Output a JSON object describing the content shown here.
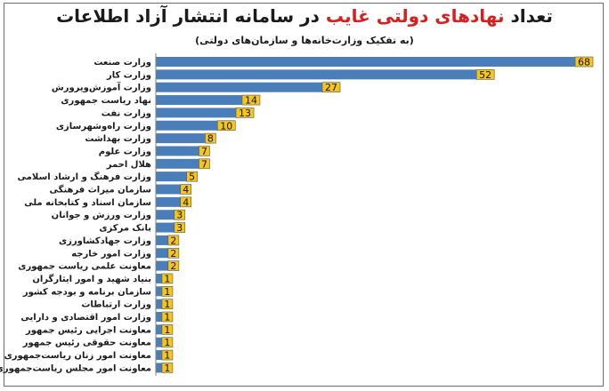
{
  "chart_data": {
    "type": "bar",
    "orientation": "horizontal",
    "title_parts": [
      "تعداد ",
      "نهادهای دولتی غایب",
      " در سامانه انتشار آزاد اطلاعات"
    ],
    "subtitle": "(به تفکیک وزارت‌خانه‌ها و سازمان‌های دولتی)",
    "categories": [
      "وزارت صنعت",
      "وزارت کار",
      "وزارت آموزش‌وپرورش",
      "نهاد ریاست جمهوری",
      "وزارت نفت",
      "وزارت راه‌وشهرسازی",
      "وزارت بهداشت",
      "وزارت علوم",
      "هلال احمر",
      "وزارت فرهنگ و ارشاد اسلامی",
      "سازمان میراث فرهنگی",
      "سازمان اسناد و کتابخانه ملی",
      "وزارت ورزش و جوانان",
      "بانک مرکزی",
      "وزارت جهادکشاورزی",
      "وزارت امور خارجه",
      "معاونت علمی ریاست جمهوری",
      "بنیاد شهید و امور ایثارگران",
      "سازمان برنامه و بودجه کشور",
      "وزارت ارتباطات",
      "وزارت امور اقتصادی و دارایی",
      "معاونت اجرایی رئیس جمهور",
      "معاونت حقوقی رئیس جمهور",
      "معاونت امور زنان ریاست‌جمهوری",
      "معاونت امور مجلس ریاست‌جمهوری"
    ],
    "values": [
      68,
      52,
      27,
      14,
      13,
      10,
      8,
      7,
      7,
      5,
      4,
      4,
      3,
      3,
      2,
      2,
      2,
      1,
      1,
      1,
      1,
      1,
      1,
      1,
      1
    ],
    "xlim": [
      0,
      68
    ],
    "grid": false,
    "legend": "none",
    "bar_color": "#4a7ebb",
    "label_box_color": "#f5c518",
    "title_highlight_color": "#d81e1e"
  }
}
